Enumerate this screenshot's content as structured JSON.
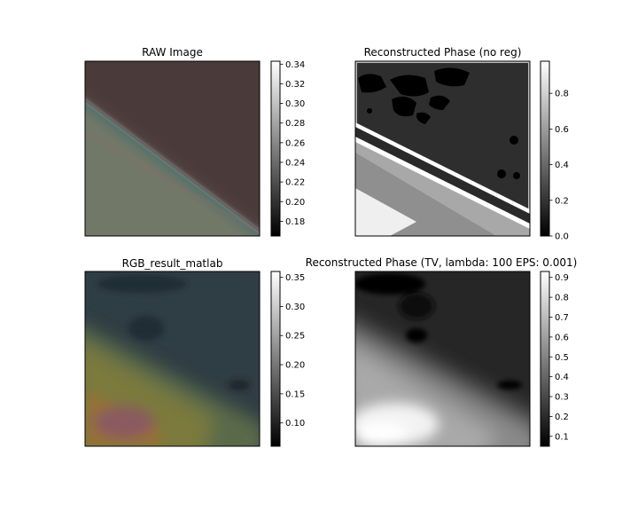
{
  "chart_data": [
    {
      "type": "heatmap",
      "title": "RAW Image",
      "colorbar": {
        "min": 0.165,
        "max": 0.343,
        "ticks": [
          0.18,
          0.2,
          0.22,
          0.24,
          0.26,
          0.28,
          0.3,
          0.32,
          0.34
        ]
      },
      "xlabel": "",
      "ylabel": "",
      "axis_ticks": false
    },
    {
      "type": "heatmap",
      "title": "Reconstructed Phase (no reg)",
      "colorbar": {
        "min": 0.0,
        "max": 0.98,
        "ticks": [
          0.0,
          0.2,
          0.4,
          0.6,
          0.8
        ]
      },
      "xlabel": "",
      "ylabel": "",
      "axis_ticks": false
    },
    {
      "type": "heatmap",
      "title": "RGB_result_matlab",
      "colorbar": {
        "min": 0.06,
        "max": 0.36,
        "ticks": [
          0.1,
          0.15,
          0.2,
          0.25,
          0.3,
          0.35
        ]
      },
      "xlabel": "",
      "ylabel": "",
      "axis_ticks": false
    },
    {
      "type": "heatmap",
      "title": "Reconstructed Phase (TV, lambda: 100 EPS: 0.001)",
      "colorbar": {
        "min": 0.05,
        "max": 0.93,
        "ticks": [
          0.1,
          0.2,
          0.3,
          0.4,
          0.5,
          0.6,
          0.7,
          0.8,
          0.9
        ]
      },
      "xlabel": "",
      "ylabel": "",
      "axis_ticks": false
    }
  ]
}
